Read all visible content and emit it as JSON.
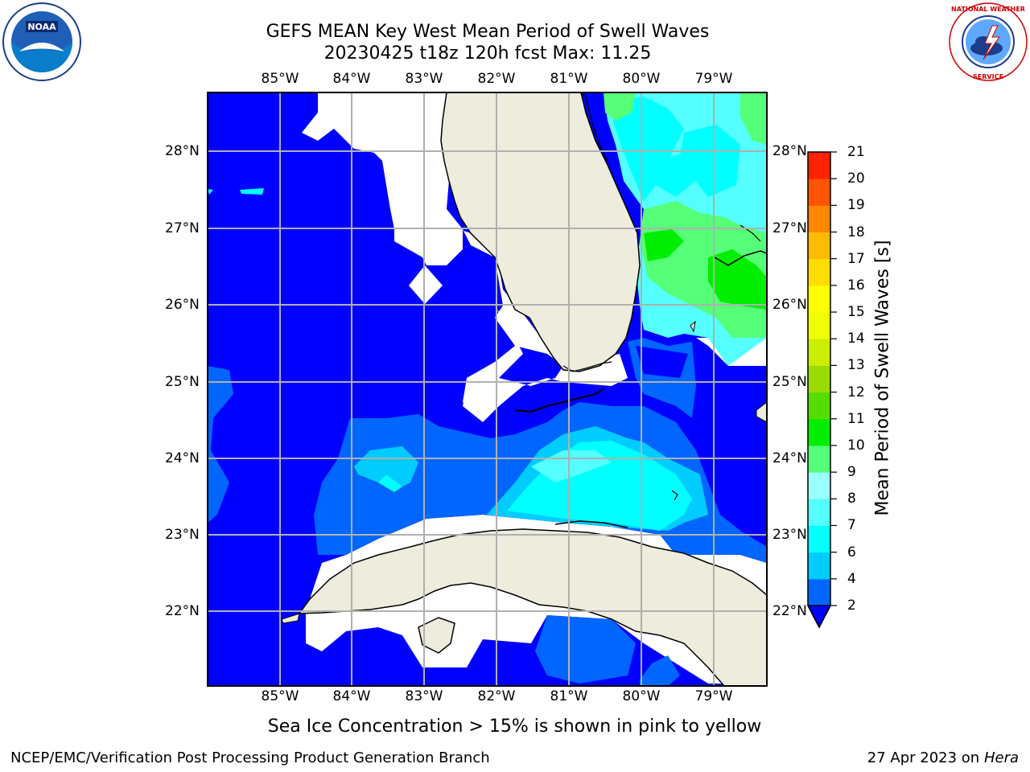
{
  "title": {
    "line1": "GEFS MEAN Key West Mean Period of Swell Waves",
    "line2": "20230425 t18z 120h fcst   Max: 11.25"
  },
  "logos": {
    "left": {
      "icon": "noaa-logo",
      "text": "NOAA"
    },
    "right": {
      "icon": "nws-logo",
      "text": "NATIONAL WEATHER SERVICE"
    }
  },
  "map": {
    "lon_labels": [
      "85°W",
      "84°W",
      "83°W",
      "82°W",
      "81°W",
      "80°W",
      "79°W"
    ],
    "lat_labels": [
      "28°N",
      "27°N",
      "26°N",
      "25°N",
      "24°N",
      "23°N",
      "22°N"
    ],
    "land_color": "#edecdd",
    "grid_color": "#b0b0b0"
  },
  "colorbar": {
    "label": "Mean Period of Swell Waves [s]",
    "ticks": [
      "2",
      "4",
      "6",
      "7",
      "8",
      "9",
      "10",
      "11",
      "12",
      "13",
      "14",
      "15",
      "16",
      "17",
      "18",
      "19",
      "20",
      "21"
    ],
    "colors": [
      "#0066ff",
      "#00ccff",
      "#00ffff",
      "#55ffff",
      "#99ffff",
      "#55ff77",
      "#00ee00",
      "#55dd00",
      "#99dd00",
      "#ccee00",
      "#eeff00",
      "#ffff00",
      "#ffdd00",
      "#ffbb00",
      "#ff8800",
      "#ff5500",
      "#ff2200"
    ],
    "under_color": "#0000ff"
  },
  "ice_note": "Sea Ice Concentration > 15% is shown in pink to yellow",
  "footer": {
    "left": "NCEP/EMC/Verification Post Processing Product Generation Branch",
    "right_date": "27 Apr 2023 on",
    "right_host": "Hera"
  }
}
